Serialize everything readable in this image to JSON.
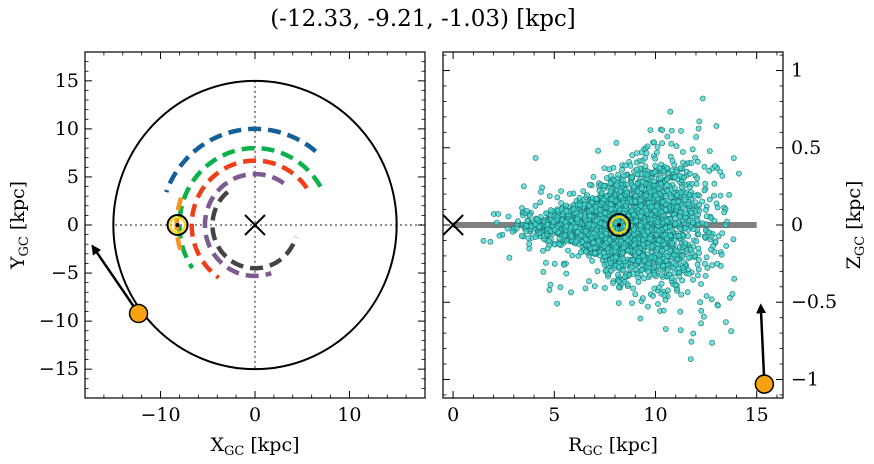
{
  "title": "(-12.33, -9.21, -1.03) [kpc]",
  "colors": {
    "disk_boundary": "#000000",
    "arm_blue": "#16609a",
    "arm_green": "#0db14b",
    "arm_red": "#ef3f1a",
    "arm_purple": "#7d5a93",
    "arm_dark": "#444444",
    "arm_orange": "#f7941d",
    "star_marker": "#f7a30f",
    "sun_marker": "#ffd700",
    "scatter_fill": "#3fd6cf",
    "scatter_edge": "#1b6f6b",
    "plane_line": "#808080"
  },
  "chart_data": [
    {
      "type": "scatter",
      "panel": "left",
      "xlabel": "X$_{GC}$ [kpc]",
      "ylabel": "Y$_{GC}$ [kpc]",
      "xlim": [
        -18,
        18
      ],
      "ylim": [
        -18,
        18
      ],
      "xticks": [
        -10,
        0,
        10
      ],
      "yticks": [
        -15,
        -10,
        -5,
        0,
        5,
        10,
        15
      ],
      "galactic_center": [
        0,
        0
      ],
      "disk_radius": 15,
      "sun_position": [
        -8.2,
        0
      ],
      "star_position": [
        -12.33,
        -9.21
      ],
      "star_velocity_arrow_end": [
        -17.2,
        -2.2
      ],
      "spiral_arms": [
        {
          "name": "arm-1",
          "color": "arm_blue",
          "r_kpc": 10,
          "phi_deg": [
            50,
            160
          ]
        },
        {
          "name": "arm-2",
          "color": "arm_green",
          "r_kpc": 8.0,
          "phi_deg": [
            30,
            215
          ]
        },
        {
          "name": "arm-3",
          "color": "arm_red",
          "r_kpc": 6.7,
          "phi_deg": [
            35,
            235
          ]
        },
        {
          "name": "arm-4",
          "color": "arm_purple",
          "r_kpc": 5.3,
          "phi_deg": [
            55,
            290
          ]
        },
        {
          "name": "arm-5",
          "color": "arm_dark",
          "r_kpc": 4.5,
          "phi_deg": [
            130,
            345
          ]
        },
        {
          "name": "arm-6",
          "color": "arm_orange",
          "r_kpc": 8.3,
          "phi_deg": [
            160,
            200
          ]
        }
      ]
    },
    {
      "type": "scatter",
      "panel": "right",
      "xlabel": "R$_{GC}$ [kpc]",
      "ylabel": "Z$_{GC}$ [kpc]",
      "xlim": [
        -0.5,
        16.3
      ],
      "ylim": [
        -1.12,
        1.12
      ],
      "xticks": [
        0,
        5,
        10,
        15
      ],
      "yticks": [
        -1.0,
        -0.5,
        0.0,
        0.5,
        1.0
      ],
      "galactic_center": [
        0,
        0
      ],
      "plane_line": [
        [
          0,
          0
        ],
        [
          15,
          0
        ]
      ],
      "sun_position": [
        8.2,
        0
      ],
      "star_position": [
        15.38,
        -1.03
      ],
      "star_velocity_arrow_end": [
        15.2,
        -0.52
      ],
      "scatter_cloud": {
        "count": 3000,
        "r_center": 8.3,
        "z_center": 0.0,
        "r_range": [
          1.5,
          14.8
        ],
        "z_range": [
          -1.05,
          1.08
        ]
      }
    }
  ]
}
